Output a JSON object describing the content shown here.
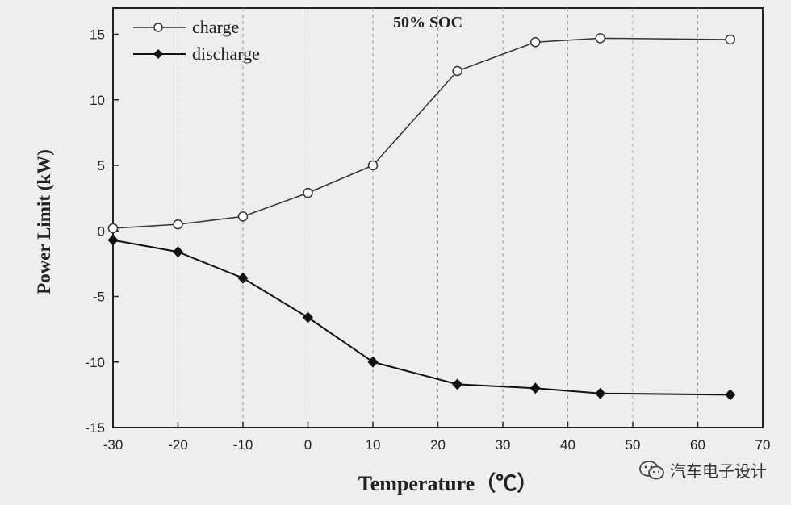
{
  "chart_data": {
    "type": "line",
    "title": "50% SOC",
    "xlabel": "Temperature（℃）",
    "ylabel": "Power Limit (kW)",
    "xlim": [
      -30,
      70
    ],
    "ylim": [
      -15,
      17
    ],
    "x_ticks": [
      -30,
      -20,
      -10,
      0,
      10,
      20,
      30,
      40,
      50,
      60,
      70
    ],
    "y_ticks": [
      -15,
      -10,
      -5,
      0,
      5,
      10,
      15
    ],
    "grid": "vertical dashed",
    "legend": "top-left",
    "series": [
      {
        "name": "charge",
        "marker": "open-circle",
        "x": [
          -30,
          -20,
          -10,
          0,
          10,
          23,
          35,
          45,
          65
        ],
        "y": [
          0.2,
          0.5,
          1.1,
          2.9,
          5.0,
          12.2,
          14.4,
          14.7,
          14.6
        ]
      },
      {
        "name": "discharge",
        "marker": "filled-diamond",
        "x": [
          -30,
          -20,
          -10,
          0,
          10,
          23,
          35,
          45,
          65
        ],
        "y": [
          -0.7,
          -1.6,
          -3.6,
          -6.6,
          -10.0,
          -11.7,
          -12.0,
          -12.4,
          -12.5
        ]
      }
    ]
  },
  "watermark": {
    "text": "汽车电子设计"
  }
}
